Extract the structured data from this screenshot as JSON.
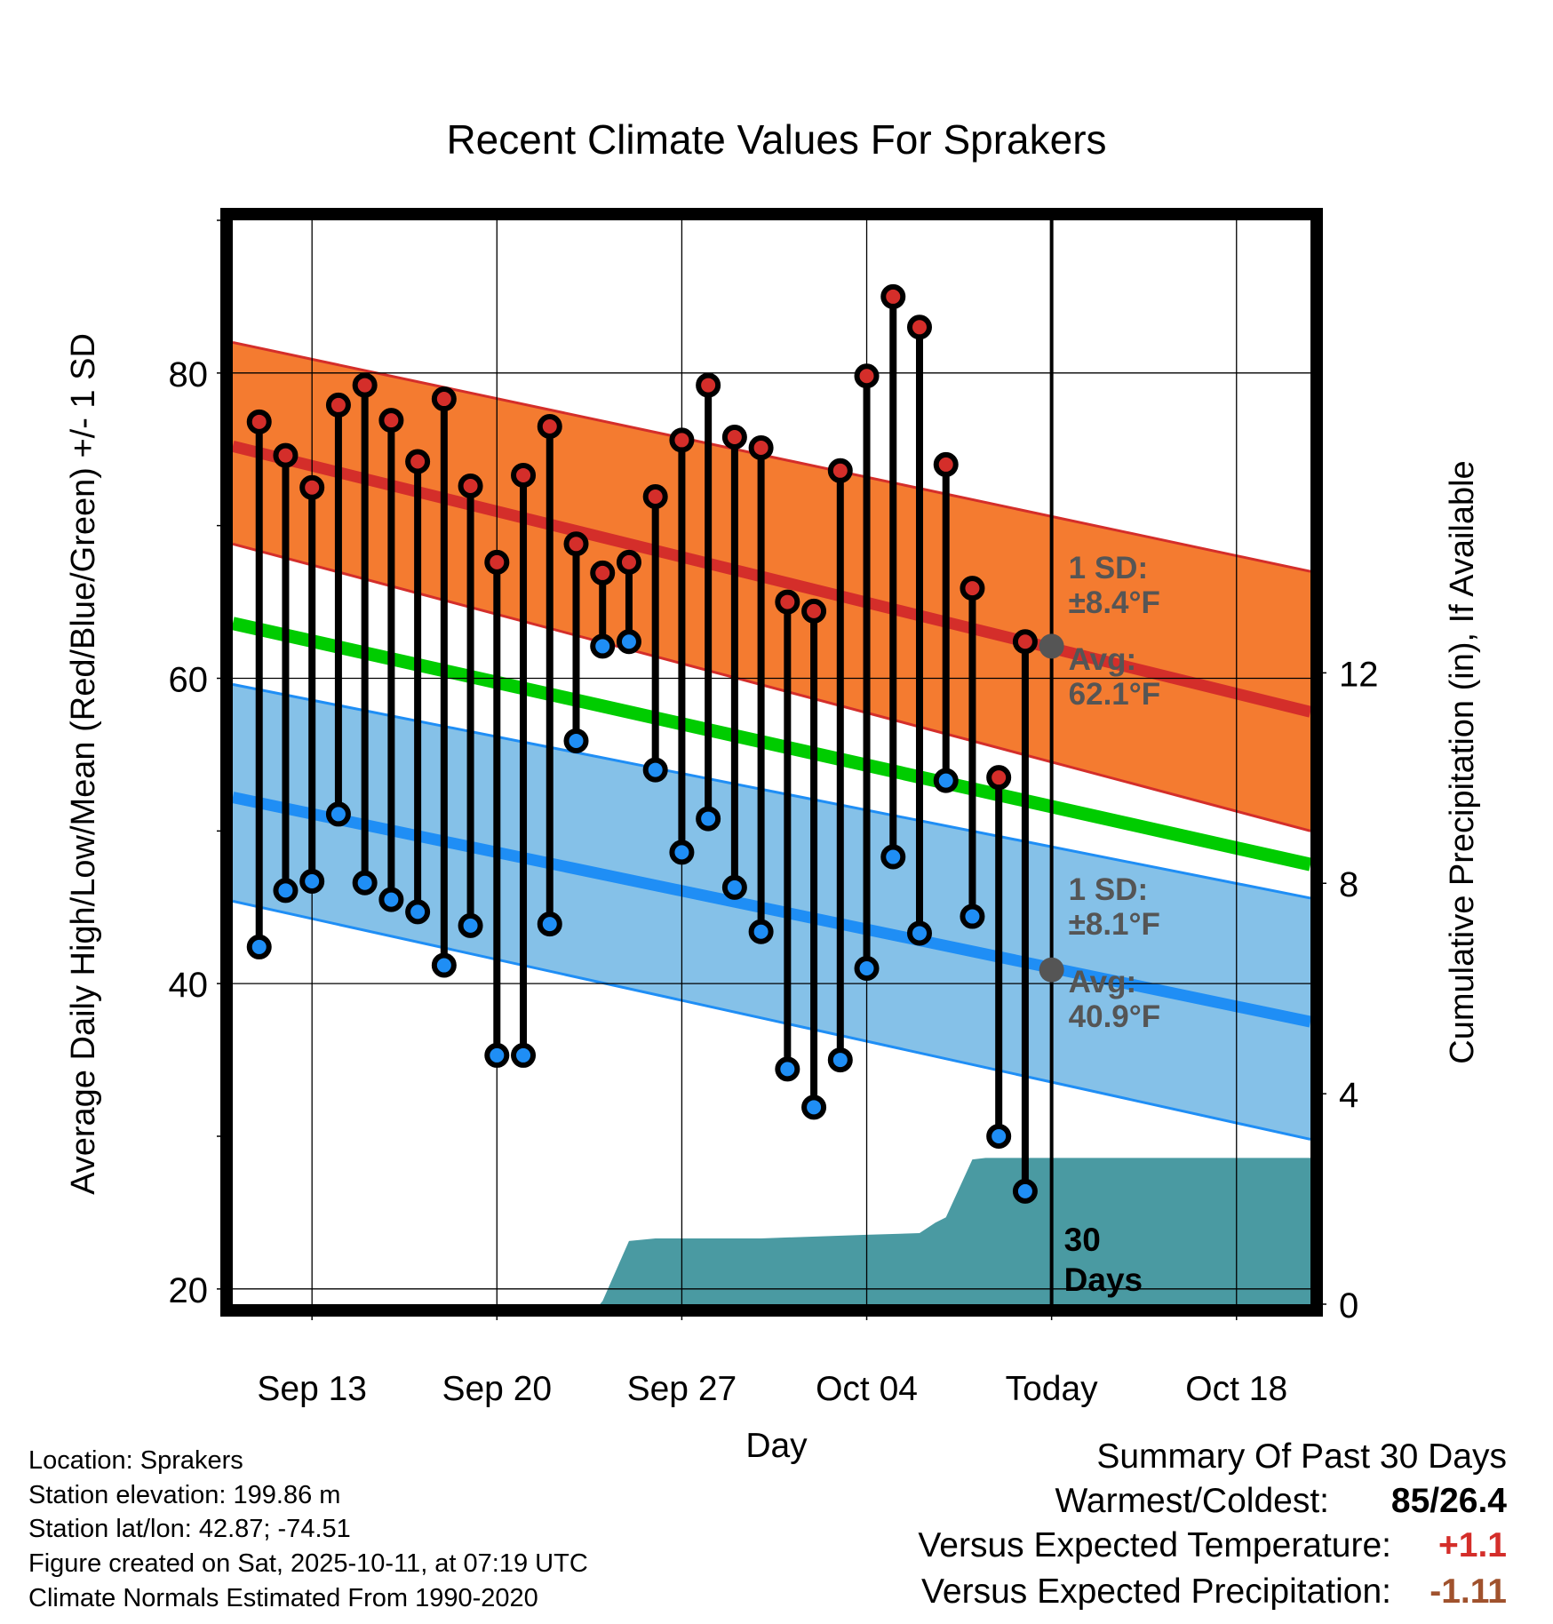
{
  "chart_data": {
    "type": "line",
    "title": "Recent Climate Values For Sprakers",
    "xlabel": "Day",
    "ylabel": "Average Daily High/Low/Mean (Red/Blue/Green) +/- 1 SD",
    "y2label": "Cumulative Precipitation (in), If Available",
    "ylim": [
      19,
      90
    ],
    "y2lim": [
      0,
      20.6
    ],
    "y_ticks": [
      20,
      40,
      60,
      80
    ],
    "y2_ticks": [
      0,
      4,
      8,
      12
    ],
    "x_range_days": [
      0,
      40.8
    ],
    "x_ticks": [
      {
        "day": 3,
        "label": "Sep 13"
      },
      {
        "day": 10,
        "label": "Sep 20"
      },
      {
        "day": 17,
        "label": "Sep 27"
      },
      {
        "day": 24,
        "label": "Oct 04"
      },
      {
        "day": 31,
        "label": "Today"
      },
      {
        "day": 38,
        "label": "Oct 18"
      }
    ],
    "today_day": 31,
    "today_label": "30\nDays",
    "normals": {
      "x": [
        0,
        40.8
      ],
      "high_mean": [
        75.2,
        57.8
      ],
      "high_upper": [
        82.0,
        67.0
      ],
      "high_lower": [
        68.8,
        50.0
      ],
      "low_mean": [
        52.2,
        37.5
      ],
      "low_upper": [
        59.6,
        45.6
      ],
      "low_lower": [
        45.4,
        29.8
      ],
      "mean_mean": [
        63.6,
        47.8
      ]
    },
    "high_sd_text": "1 SD:\n±8.4°F",
    "high_avg_text": "Avg:\n62.1°F",
    "high_avg_value": 62.1,
    "low_sd_text": "1 SD:\n±8.1°F",
    "low_avg_text": "Avg:\n40.9°F",
    "low_avg_value": 40.9,
    "daily": {
      "days": [
        1,
        2,
        3,
        4,
        5,
        6,
        7,
        8,
        9,
        10,
        11,
        12,
        13,
        14,
        15,
        16,
        17,
        18,
        19,
        20,
        21,
        22,
        23,
        24,
        25,
        26,
        27,
        28,
        29,
        30
      ],
      "highs": [
        76.8,
        74.6,
        72.5,
        77.9,
        79.2,
        76.9,
        74.2,
        78.3,
        72.6,
        67.6,
        73.3,
        76.5,
        68.8,
        66.9,
        67.6,
        71.9,
        75.6,
        79.2,
        75.8,
        75.1,
        65.0,
        64.4,
        73.6,
        79.8,
        85.0,
        83.0,
        74.0,
        65.9,
        53.5,
        62.4
      ],
      "lows": [
        42.4,
        46.1,
        46.7,
        51.1,
        46.6,
        45.5,
        44.7,
        41.2,
        43.8,
        35.3,
        35.3,
        43.9,
        55.9,
        62.1,
        62.4,
        54.0,
        48.6,
        50.8,
        46.3,
        43.4,
        34.4,
        31.9,
        35.0,
        41.0,
        48.3,
        43.3,
        53.3,
        44.4,
        30.0,
        26.4
      ]
    },
    "precip": {
      "x": [
        0,
        13.9,
        14.0,
        14.3,
        15.0,
        16.0,
        20.0,
        24.0,
        26.0,
        26.6,
        27.0,
        28.0,
        28.5,
        31.0,
        40.8
      ],
      "y": [
        0,
        0,
        0.06,
        0.4,
        1.2,
        1.25,
        1.25,
        1.32,
        1.35,
        1.55,
        1.65,
        2.75,
        2.78,
        2.78,
        2.78
      ]
    },
    "colors": {
      "high": "#d42e2a",
      "high_band": "#f47b30",
      "low": "#1f8ef5",
      "low_band": "#85c1e8",
      "mean": "#00cc00",
      "precip": "#4a9aa2",
      "annotation": "#555555"
    }
  },
  "footer": {
    "location": "Location: Sprakers",
    "elevation": "Station elevation: 199.86 m",
    "latlon": "Station lat/lon: 42.87; -74.51",
    "created": "Figure created on Sat, 2025-10-11, at 07:19 UTC",
    "normals": "Climate Normals Estimated From 1990-2020"
  },
  "summary": {
    "title": "Summary Of Past 30 Days",
    "warm_cold_label": "Warmest/Coldest:",
    "warm_cold_value": "85/26.4",
    "temp_label": "Versus Expected Temperature:",
    "temp_value": "+1.1",
    "temp_color": "#d42e2a",
    "precip_label": "Versus Expected Precipitation:",
    "precip_value": "-1.11",
    "precip_color": "#a0522d"
  }
}
